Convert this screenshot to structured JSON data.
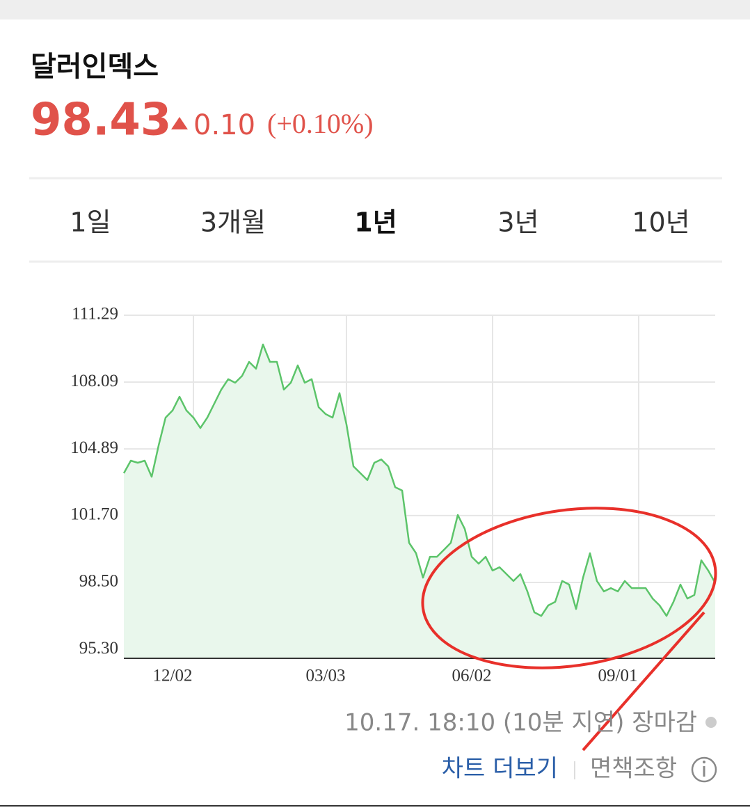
{
  "header": {
    "title": "달러인덱스",
    "price": "98.43",
    "change": "0.10",
    "change_pct": "(+0.10%)"
  },
  "tabs": [
    "1일",
    "3개월",
    "1년",
    "3년",
    "10년"
  ],
  "chart_data": {
    "type": "line",
    "categories": [
      null,
      null,
      null,
      null,
      null,
      null,
      null,
      null,
      null,
      null,
      "12/02",
      null,
      null,
      null,
      null,
      null,
      null,
      null,
      null,
      null,
      null,
      null,
      null,
      null,
      null,
      null,
      null,
      null,
      null,
      null,
      null,
      null,
      "03/03",
      null,
      null,
      null,
      null,
      null,
      null,
      null,
      null,
      null,
      null,
      null,
      null,
      null,
      null,
      null,
      null,
      null,
      null,
      null,
      null,
      "06/02",
      null,
      null,
      null,
      null,
      null,
      null,
      null,
      null,
      null,
      null,
      null,
      null,
      null,
      null,
      null,
      null,
      null,
      null,
      null,
      null,
      "09/01",
      null,
      null,
      null,
      null,
      null,
      null,
      null,
      null,
      null,
      null,
      null
    ],
    "series": [
      {
        "color": "#5cc46a",
        "values": [
          103.73,
          104.33,
          104.23,
          104.33,
          103.56,
          105.06,
          106.39,
          106.73,
          107.39,
          106.73,
          106.39,
          105.89,
          106.39,
          107.06,
          107.73,
          108.23,
          108.06,
          108.39,
          109.06,
          108.73,
          109.89,
          109.06,
          109.06,
          107.73,
          108.06,
          108.89,
          108.06,
          108.23,
          106.89,
          106.56,
          106.39,
          107.56,
          106.06,
          104.06,
          103.73,
          103.4,
          104.23,
          104.39,
          104.06,
          103.06,
          102.9,
          100.4,
          99.9,
          98.73,
          99.73,
          99.73,
          100.06,
          100.4,
          101.73,
          101.06,
          99.73,
          99.4,
          99.73,
          99.07,
          99.23,
          98.9,
          98.57,
          98.9,
          98.07,
          97.07,
          96.9,
          97.4,
          97.57,
          98.57,
          98.4,
          97.23,
          98.73,
          99.9,
          98.57,
          98.07,
          98.23,
          98.07,
          98.57,
          98.23,
          98.23,
          98.23,
          97.73,
          97.4,
          96.9,
          97.57,
          98.4,
          97.73,
          97.9,
          99.56,
          99.07,
          98.47
        ]
      }
    ],
    "ylim": [
      94.87,
      111.29
    ],
    "yticks": [
      {
        "value": 111.29,
        "label": "111.29"
      },
      {
        "value": 108.09,
        "label": "108.09"
      },
      {
        "value": 104.89,
        "label": "104.89"
      },
      {
        "value": 101.7,
        "label": "101.70"
      },
      {
        "value": 98.5,
        "label": "98.50"
      },
      {
        "value": 95.3,
        "label": "95.30"
      }
    ],
    "grid": true
  },
  "footer": {
    "timestamp": "10.17. 18:10 (10분 지연) 장마감",
    "more": "차트 더보기",
    "disclaimer": "면책조항"
  }
}
